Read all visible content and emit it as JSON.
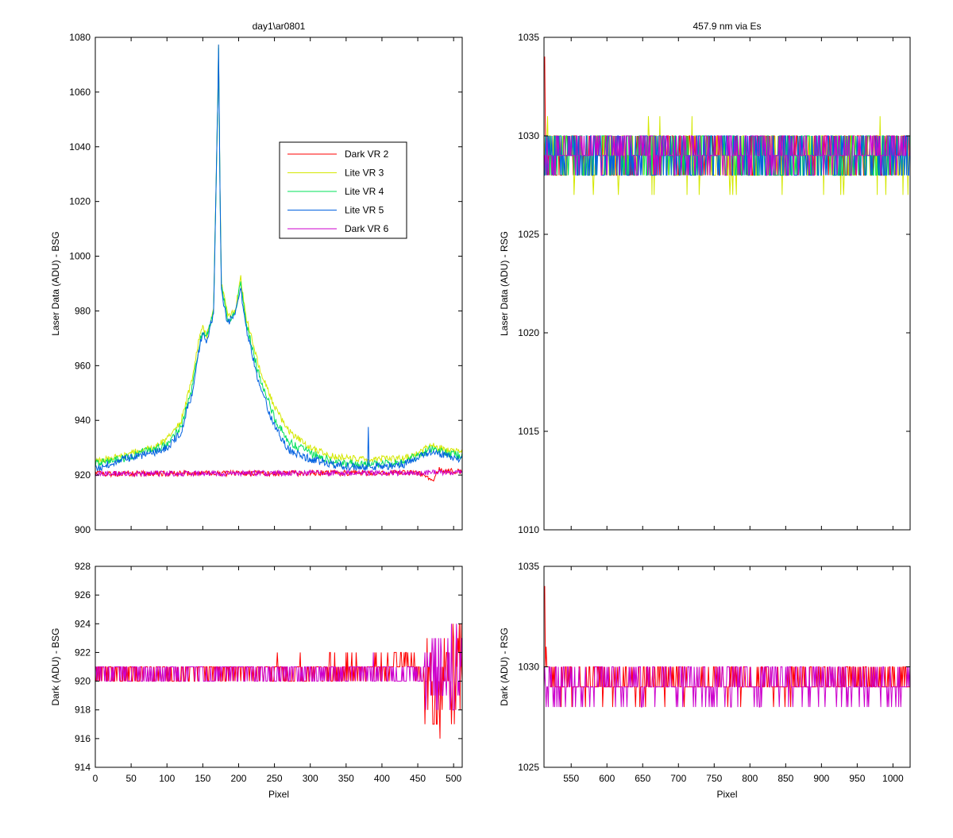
{
  "figure": {
    "background": "#ffffff",
    "series_colors": {
      "dark_vr_2": "#ff0000",
      "lite_vr_3": "#d4e800",
      "lite_vr_4": "#00e05a",
      "lite_vr_5": "#0060e0",
      "dark_vr_6": "#cc00cc",
      "dark_vr_6_overlap": "#ff00aa"
    }
  },
  "chart_data": [
    {
      "id": "bsg-laser",
      "type": "line",
      "title": "day1\\ar0801",
      "xlabel": "",
      "ylabel": "Laser Data (ADU) - BSG",
      "xlim": [
        0,
        512
      ],
      "ylim": [
        900,
        1080
      ],
      "xticks": [
        0,
        50,
        100,
        150,
        200,
        250,
        300,
        350,
        400,
        450,
        500
      ],
      "xtick_labels_shown": false,
      "yticks": [
        900,
        920,
        940,
        960,
        980,
        1000,
        1020,
        1040,
        1060,
        1080
      ],
      "legend": {
        "placement": "inside-upper-right",
        "entries": [
          "Dark VR 2",
          "Lite VR 3",
          "Lite VR 4",
          "Lite VR 5",
          "Dark VR 6"
        ]
      },
      "series": [
        {
          "name": "Lite VR 3",
          "style": "lite",
          "key": "lite_vr_3",
          "values": [
            [
              0,
              925
            ],
            [
              20,
              926
            ],
            [
              40,
              927
            ],
            [
              60,
              929
            ],
            [
              80,
              930
            ],
            [
              100,
              933
            ],
            [
              120,
              940
            ],
            [
              135,
              955
            ],
            [
              145,
              970
            ],
            [
              150,
              975
            ],
            [
              155,
              970
            ],
            [
              165,
              980
            ],
            [
              171,
              1058
            ],
            [
              172,
              1077
            ],
            [
              174,
              1025
            ],
            [
              176,
              990
            ],
            [
              180,
              985
            ],
            [
              185,
              978
            ],
            [
              195,
              980
            ],
            [
              203,
              992
            ],
            [
              210,
              978
            ],
            [
              230,
              958
            ],
            [
              250,
              945
            ],
            [
              270,
              936
            ],
            [
              300,
              930
            ],
            [
              330,
              927
            ],
            [
              360,
              926
            ],
            [
              400,
              926
            ],
            [
              430,
              926
            ],
            [
              450,
              928
            ],
            [
              470,
              931
            ],
            [
              490,
              929
            ],
            [
              512,
              929
            ]
          ],
          "noise": 1.2
        },
        {
          "name": "Lite VR 4",
          "style": "lite",
          "key": "lite_vr_4",
          "values": [
            [
              0,
              924
            ],
            [
              20,
              925
            ],
            [
              40,
              926
            ],
            [
              60,
              928
            ],
            [
              80,
              929
            ],
            [
              100,
              931
            ],
            [
              120,
              938
            ],
            [
              135,
              952
            ],
            [
              145,
              968
            ],
            [
              150,
              972
            ],
            [
              155,
              970
            ],
            [
              165,
              980
            ],
            [
              171,
              1058
            ],
            [
              172,
              1077
            ],
            [
              174,
              1025
            ],
            [
              176,
              989
            ],
            [
              180,
              983
            ],
            [
              185,
              977
            ],
            [
              195,
              979
            ],
            [
              203,
              990
            ],
            [
              210,
              976
            ],
            [
              230,
              955
            ],
            [
              250,
              941
            ],
            [
              270,
              932
            ],
            [
              300,
              928
            ],
            [
              330,
              925
            ],
            [
              360,
              924
            ],
            [
              400,
              924
            ],
            [
              430,
              925
            ],
            [
              450,
              927
            ],
            [
              470,
              930
            ],
            [
              490,
              928
            ],
            [
              512,
              927
            ]
          ],
          "noise": 1.5
        },
        {
          "name": "Lite VR 5",
          "style": "lite",
          "key": "lite_vr_5",
          "values": [
            [
              0,
              922
            ],
            [
              20,
              924
            ],
            [
              40,
              926
            ],
            [
              60,
              927
            ],
            [
              80,
              928
            ],
            [
              100,
              930
            ],
            [
              120,
              936
            ],
            [
              135,
              950
            ],
            [
              145,
              966
            ],
            [
              150,
              972
            ],
            [
              155,
              969
            ],
            [
              165,
              979
            ],
            [
              171,
              1058
            ],
            [
              172,
              1077
            ],
            [
              174,
              1025
            ],
            [
              176,
              987
            ],
            [
              180,
              981
            ],
            [
              185,
              976
            ],
            [
              195,
              978
            ],
            [
              203,
              988
            ],
            [
              210,
              974
            ],
            [
              230,
              952
            ],
            [
              250,
              938
            ],
            [
              270,
              929
            ],
            [
              300,
              926
            ],
            [
              330,
              924
            ],
            [
              360,
              923
            ],
            [
              380,
              923
            ],
            [
              381,
              937
            ],
            [
              382,
              923
            ],
            [
              400,
              923
            ],
            [
              430,
              924
            ],
            [
              450,
              926
            ],
            [
              470,
              929
            ],
            [
              490,
              927
            ],
            [
              512,
              926
            ]
          ],
          "noise": 1.5
        },
        {
          "name": "Dark VR 2",
          "style": "dark",
          "key": "dark_vr_2",
          "values": [
            [
              0,
              920.5
            ],
            [
              450,
              920.8
            ],
            [
              460,
              920
            ],
            [
              470,
              918
            ],
            [
              480,
              922
            ],
            [
              512,
              921
            ]
          ],
          "noise": 1.0
        },
        {
          "name": "Dark VR 6",
          "style": "dark",
          "key": "dark_vr_6",
          "values": [
            [
              0,
              920.5
            ],
            [
              450,
              920.8
            ],
            [
              512,
              921
            ]
          ],
          "noise": 1.0
        }
      ]
    },
    {
      "id": "rsg-laser",
      "type": "line",
      "title": "457.9 nm via Es",
      "xlabel": "",
      "ylabel": "Laser Data (ADU) - RSG",
      "xlim": [
        512,
        1024
      ],
      "ylim": [
        1010,
        1035
      ],
      "xticks": [
        550,
        600,
        650,
        700,
        750,
        800,
        850,
        900,
        950,
        1000
      ],
      "xtick_labels_shown": false,
      "yticks": [
        1010,
        1015,
        1020,
        1025,
        1030,
        1035
      ],
      "series": [
        {
          "name": "Dark VR 2",
          "style": "int",
          "key": "dark_vr_2",
          "values": [
            [
              513,
              1034
            ],
            [
              514,
              1031
            ],
            [
              515,
              1029
            ],
            [
              1024,
              1029.3
            ]
          ],
          "noise": 1.2
        },
        {
          "name": "Lite VR 3",
          "style": "int",
          "key": "lite_vr_3",
          "values": [
            [
              512,
              1029
            ],
            [
              1024,
              1028.9
            ]
          ],
          "noise": 1.6
        },
        {
          "name": "Lite VR 4",
          "style": "int",
          "key": "lite_vr_4",
          "values": [
            [
              512,
              1029
            ],
            [
              1024,
              1029
            ]
          ],
          "noise": 1.5
        },
        {
          "name": "Lite VR 5",
          "style": "int",
          "key": "lite_vr_5",
          "values": [
            [
              512,
              1029
            ],
            [
              1024,
              1029
            ]
          ],
          "noise": 1.4
        },
        {
          "name": "Dark VR 6",
          "style": "int",
          "key": "dark_vr_6",
          "values": [
            [
              512,
              1029.2
            ],
            [
              1024,
              1029.2
            ]
          ],
          "noise": 1.0
        }
      ]
    },
    {
      "id": "bsg-dark",
      "type": "line",
      "title": "",
      "xlabel": "Pixel",
      "ylabel": "Dark (ADU) - BSG",
      "xlim": [
        0,
        512
      ],
      "ylim": [
        914,
        928
      ],
      "xticks": [
        0,
        50,
        100,
        150,
        200,
        250,
        300,
        350,
        400,
        450,
        500
      ],
      "xtick_labels_shown": true,
      "yticks": [
        914,
        916,
        918,
        920,
        922,
        924,
        926,
        928
      ],
      "series": [
        {
          "name": "Dark VR 2",
          "style": "int",
          "key": "dark_vr_2",
          "values": [
            [
              0,
              920.6
            ],
            [
              400,
              920.8
            ],
            [
              440,
              921.3
            ],
            [
              460,
              920.5
            ],
            [
              470,
              919
            ],
            [
              512,
              921
            ]
          ],
          "noise": 0.8,
          "burst": [
            [
              460,
              512,
              3.5
            ]
          ]
        },
        {
          "name": "Dark VR 6",
          "style": "int",
          "key": "dark_vr_6",
          "values": [
            [
              0,
              920.6
            ],
            [
              512,
              920.8
            ]
          ],
          "noise": 0.8,
          "burst": [
            [
              460,
              512,
              3.0
            ]
          ]
        }
      ]
    },
    {
      "id": "rsg-dark",
      "type": "line",
      "title": "",
      "xlabel": "Pixel",
      "ylabel": "Dark (ADU) - RSG",
      "xlim": [
        512,
        1024
      ],
      "ylim": [
        1025,
        1035
      ],
      "xticks": [
        550,
        600,
        650,
        700,
        750,
        800,
        850,
        900,
        950,
        1000
      ],
      "xtick_labels_shown": true,
      "yticks": [
        1025,
        1030,
        1035
      ],
      "series": [
        {
          "name": "Dark VR 2",
          "style": "int",
          "key": "dark_vr_2",
          "values": [
            [
              513,
              1034
            ],
            [
              514,
              1031
            ],
            [
              516,
              1029.2
            ],
            [
              1024,
              1029.3
            ]
          ],
          "noise": 0.8
        },
        {
          "name": "Dark VR 6",
          "style": "int",
          "key": "dark_vr_6",
          "values": [
            [
              512,
              1029.2
            ],
            [
              1024,
              1029.2
            ]
          ],
          "noise": 0.9
        }
      ]
    }
  ]
}
